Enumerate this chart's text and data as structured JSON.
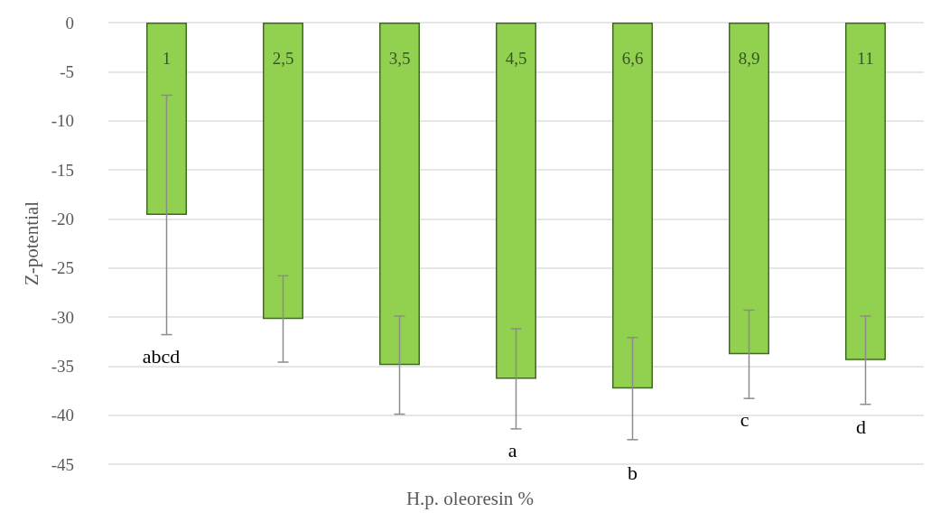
{
  "chart_data": {
    "type": "bar",
    "xlabel": "H.p. oleoresin %",
    "ylabel": "Z-potential",
    "categories": [
      "1",
      "2,5",
      "3,5",
      "4,5",
      "6,6",
      "8,9",
      "11"
    ],
    "series": [
      {
        "color": "#92d050",
        "values": [
          -19.6,
          -30.2,
          -34.9,
          -36.3,
          -37.3,
          -33.8,
          -34.4
        ],
        "errors": [
          12.2,
          4.4,
          5,
          5.1,
          5.2,
          4.5,
          4.5
        ]
      }
    ],
    "ylim": [
      -45,
      0
    ],
    "yticks": [
      0,
      -5,
      -10,
      -15,
      -20,
      -25,
      -30,
      -35,
      -40,
      -45
    ],
    "grid": "y",
    "annotations": [
      "abcd",
      "a",
      "b",
      "c",
      "d"
    ]
  }
}
